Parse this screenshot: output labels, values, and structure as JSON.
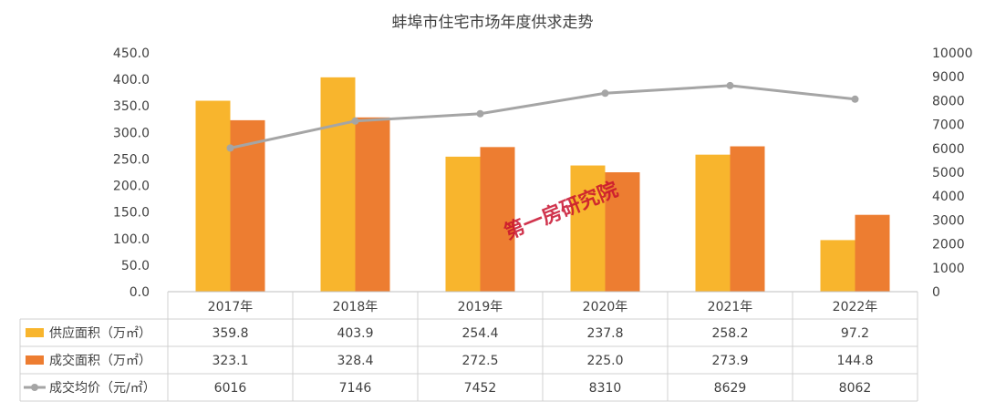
{
  "chart_data": {
    "type": "bar",
    "title": "蚌埠市住宅市场年度供求走势",
    "categories": [
      "2017年",
      "2018年",
      "2019年",
      "2020年",
      "2021年",
      "2022年"
    ],
    "series": [
      {
        "name": "供应面积（万㎡）",
        "type": "bar",
        "axis": "left",
        "color": "#F8B52D",
        "values": [
          359.8,
          403.9,
          254.4,
          237.8,
          258.2,
          97.2
        ]
      },
      {
        "name": "成交面积（万㎡）",
        "type": "bar",
        "axis": "left",
        "color": "#ED7D31",
        "values": [
          323.1,
          328.4,
          272.5,
          225.0,
          273.9,
          144.8
        ]
      },
      {
        "name": "成交均价（元/㎡）",
        "type": "line",
        "axis": "right",
        "color": "#A5A5A5",
        "values": [
          6016,
          7146,
          7452,
          8310,
          8629,
          8062
        ]
      }
    ],
    "left_axis": {
      "min": 0,
      "max": 450,
      "step": 50,
      "tick_labels": [
        "0.0",
        "50.0",
        "100.0",
        "150.0",
        "200.0",
        "250.0",
        "300.0",
        "350.0",
        "400.0",
        "450.0"
      ]
    },
    "right_axis": {
      "min": 0,
      "max": 10000,
      "step": 1000,
      "tick_labels": [
        "0",
        "1000",
        "2000",
        "3000",
        "4000",
        "5000",
        "6000",
        "7000",
        "8000",
        "9000",
        "10000"
      ]
    },
    "data_table": {
      "rows": [
        [
          "359.8",
          "403.9",
          "254.4",
          "237.8",
          "258.2",
          "97.2"
        ],
        [
          "323.1",
          "328.4",
          "272.5",
          "225.0",
          "273.9",
          "144.8"
        ],
        [
          "6016",
          "7146",
          "7452",
          "8310",
          "8629",
          "8062"
        ]
      ]
    },
    "grid": false,
    "watermark": "第一房研究院"
  }
}
